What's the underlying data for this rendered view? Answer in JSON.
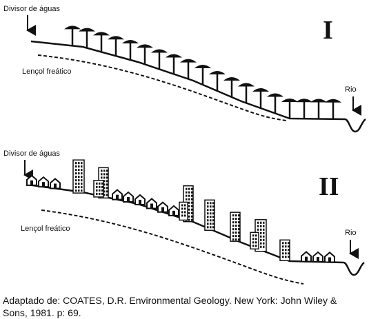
{
  "panels": [
    {
      "label": "I",
      "divisor": "Divisor de águas",
      "lencol": "Lençol freático",
      "rio": "Rio"
    },
    {
      "label": "II",
      "divisor": "Divisor de águas",
      "lencol": "Lençol freático",
      "rio": "Rio"
    }
  ],
  "caption_lines": [
    "Adaptado de: COATES, D.R. Environmental Geology. New York: John Wiley &",
    "Sons, 1981. p: 69."
  ]
}
